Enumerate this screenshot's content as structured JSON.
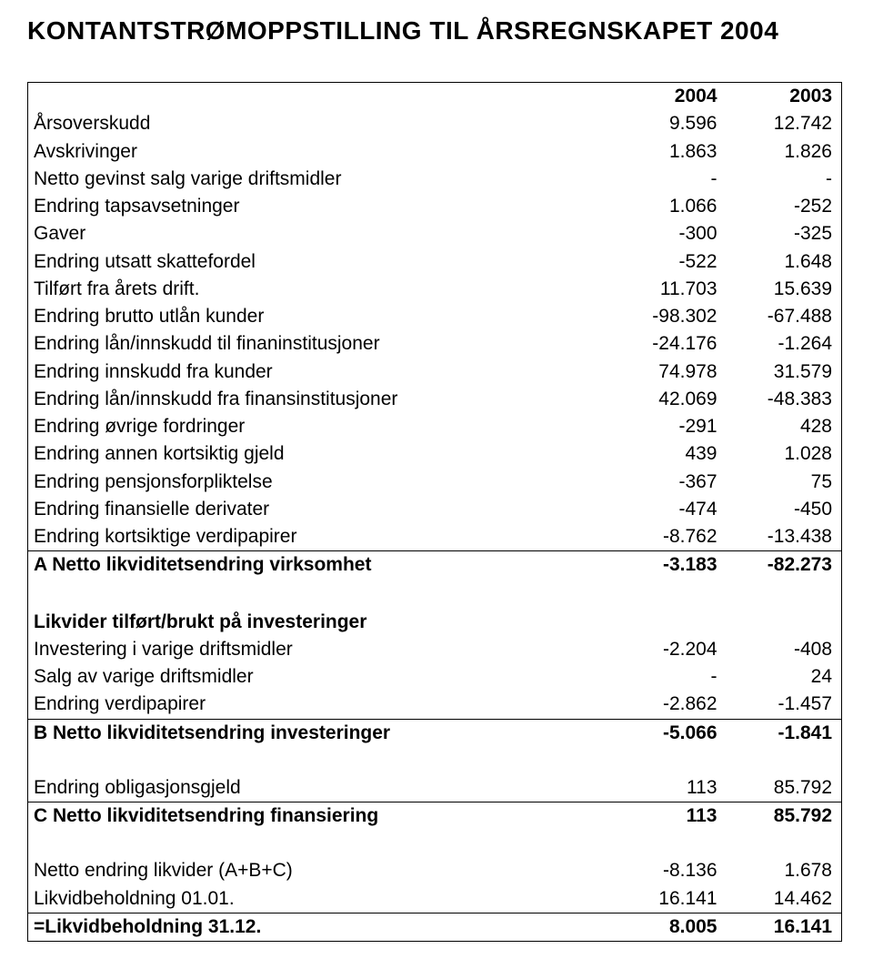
{
  "title": "KONTANTSTRØMOPPSTILLING TIL ÅRSREGNSKAPET 2004",
  "cols": {
    "a": "2004",
    "b": "2003"
  },
  "sections": [
    {
      "header": null,
      "rows": [
        {
          "label": "Årsoverskudd",
          "a": "9.596",
          "b": "12.742"
        },
        {
          "label": "Avskrivinger",
          "a": "1.863",
          "b": "1.826"
        },
        {
          "label": "Netto gevinst salg varige driftsmidler",
          "a": "-",
          "b": "-"
        },
        {
          "label": "Endring tapsavsetninger",
          "a": "1.066",
          "b": "-252"
        },
        {
          "label": "Gaver",
          "a": "-300",
          "b": "-325"
        },
        {
          "label": "Endring utsatt skattefordel",
          "a": "-522",
          "b": "1.648"
        },
        {
          "label": "Tilført fra årets drift.",
          "a": "11.703",
          "b": "15.639"
        },
        {
          "label": "Endring brutto utlån kunder",
          "a": "-98.302",
          "b": "-67.488"
        },
        {
          "label": "Endring lån/innskudd til finaninstitusjoner",
          "a": "-24.176",
          "b": "-1.264"
        },
        {
          "label": "Endring innskudd fra kunder",
          "a": "74.978",
          "b": "31.579"
        },
        {
          "label": "Endring lån/innskudd fra finansinstitusjoner",
          "a": "42.069",
          "b": "-48.383"
        },
        {
          "label": "Endring øvrige fordringer",
          "a": "-291",
          "b": "428"
        },
        {
          "label": "Endring annen kortsiktig gjeld",
          "a": "439",
          "b": "1.028"
        },
        {
          "label": "Endring pensjonsforpliktelse",
          "a": "-367",
          "b": "75"
        },
        {
          "label": "Endring finansielle derivater",
          "a": "-474",
          "b": "-450"
        },
        {
          "label": "Endring kortsiktige verdipapirer",
          "a": "-8.762",
          "b": "-13.438"
        }
      ],
      "total": {
        "label": "A Netto likviditetsendring virksomhet",
        "a": "-3.183",
        "b": "-82.273"
      }
    },
    {
      "header": "Likvider tilført/brukt på investeringer",
      "rows": [
        {
          "label": "Investering i varige driftsmidler",
          "a": "-2.204",
          "b": "-408"
        },
        {
          "label": "Salg av varige driftsmidler",
          "a": "-",
          "b": "24"
        },
        {
          "label": "Endring verdipapirer",
          "a": "-2.862",
          "b": "-1.457"
        }
      ],
      "total": {
        "label": "B Netto likviditetsendring investeringer",
        "a": "-5.066",
        "b": "-1.841"
      }
    },
    {
      "header": null,
      "rows": [
        {
          "label": "Endring obligasjonsgjeld",
          "a": "113",
          "b": "85.792"
        }
      ],
      "total": {
        "label": "C Netto likviditetsendring finansiering",
        "a": "113",
        "b": "85.792"
      }
    },
    {
      "header": null,
      "rows": [
        {
          "label": "Netto endring likvider (A+B+C)",
          "a": "-8.136",
          "b": "1.678"
        },
        {
          "label": "Likvidbeholdning 01.01.",
          "a": "16.141",
          "b": "14.462"
        }
      ],
      "total": {
        "label": "=Likvidbeholdning 31.12.",
        "a": "8.005",
        "b": "16.141"
      }
    }
  ]
}
